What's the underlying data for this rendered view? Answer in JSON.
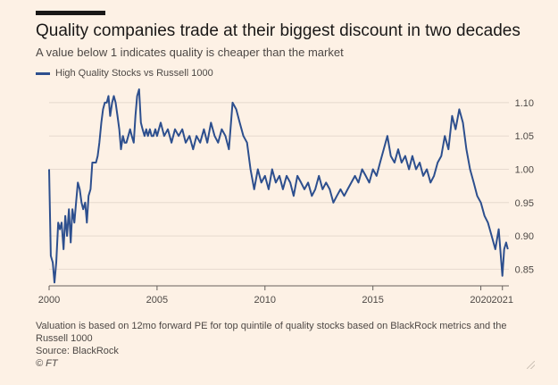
{
  "header": {
    "title": "Quality companies trade at their biggest discount in two decades",
    "subtitle": "A value below 1 indicates quality is cheaper than the market"
  },
  "legend": {
    "label": "High Quality Stocks vs Russell 1000",
    "color": "#2d4f8e"
  },
  "footer": {
    "note": "Valuation is based on 12mo forward PE for top quintile of quality stocks based on BlackRock metrics and the Russell 1000",
    "source": "Source: BlackRock",
    "copyright": "© FT"
  },
  "chart_data": {
    "type": "line",
    "title": "Quality companies trade at their biggest discount in two decades",
    "subtitle": "A value below 1 indicates quality is cheaper than the market",
    "xlabel": "",
    "ylabel": "",
    "xlim": [
      2000,
      2021.3
    ],
    "ylim": [
      0.825,
      1.12
    ],
    "x_ticks": [
      "2000",
      "2005",
      "2010",
      "2015",
      "2020",
      "2021"
    ],
    "x_tick_values": [
      2000,
      2005,
      2010,
      2015,
      2020,
      2021
    ],
    "y_ticks": [
      "0.85",
      "0.90",
      "0.95",
      "1.00",
      "1.05",
      "1.10"
    ],
    "y_tick_values": [
      0.85,
      0.9,
      0.95,
      1.0,
      1.05,
      1.1
    ],
    "grid": "horizontal",
    "legend_position": "top-left",
    "series": [
      {
        "name": "High Quality Stocks vs Russell 1000",
        "color": "#2d4f8e",
        "x": [
          2000.0,
          2000.08,
          2000.17,
          2000.25,
          2000.33,
          2000.42,
          2000.5,
          2000.58,
          2000.67,
          2000.75,
          2000.83,
          2000.92,
          2001.0,
          2001.08,
          2001.17,
          2001.25,
          2001.33,
          2001.42,
          2001.5,
          2001.58,
          2001.67,
          2001.75,
          2001.83,
          2001.92,
          2002.0,
          2002.08,
          2002.17,
          2002.25,
          2002.33,
          2002.42,
          2002.5,
          2002.58,
          2002.67,
          2002.75,
          2002.83,
          2002.92,
          2003.0,
          2003.08,
          2003.17,
          2003.25,
          2003.33,
          2003.42,
          2003.5,
          2003.58,
          2003.67,
          2003.75,
          2003.83,
          2003.92,
          2004.0,
          2004.08,
          2004.17,
          2004.25,
          2004.33,
          2004.42,
          2004.5,
          2004.58,
          2004.67,
          2004.75,
          2004.83,
          2004.92,
          2005.0,
          2005.17,
          2005.33,
          2005.5,
          2005.67,
          2005.83,
          2006.0,
          2006.17,
          2006.33,
          2006.5,
          2006.67,
          2006.83,
          2007.0,
          2007.17,
          2007.33,
          2007.5,
          2007.67,
          2007.83,
          2008.0,
          2008.17,
          2008.33,
          2008.5,
          2008.67,
          2008.83,
          2009.0,
          2009.17,
          2009.33,
          2009.5,
          2009.67,
          2009.83,
          2010.0,
          2010.17,
          2010.33,
          2010.5,
          2010.67,
          2010.83,
          2011.0,
          2011.17,
          2011.33,
          2011.5,
          2011.67,
          2011.83,
          2012.0,
          2012.17,
          2012.33,
          2012.5,
          2012.67,
          2012.83,
          2013.0,
          2013.17,
          2013.33,
          2013.5,
          2013.67,
          2013.83,
          2014.0,
          2014.17,
          2014.33,
          2014.5,
          2014.67,
          2014.83,
          2015.0,
          2015.17,
          2015.33,
          2015.5,
          2015.67,
          2015.83,
          2016.0,
          2016.17,
          2016.33,
          2016.5,
          2016.67,
          2016.83,
          2017.0,
          2017.17,
          2017.33,
          2017.5,
          2017.67,
          2017.83,
          2018.0,
          2018.17,
          2018.33,
          2018.5,
          2018.67,
          2018.83,
          2019.0,
          2019.17,
          2019.33,
          2019.5,
          2019.67,
          2019.83,
          2020.0,
          2020.17,
          2020.33,
          2020.5,
          2020.67,
          2020.83,
          2021.0,
          2021.08,
          2021.17,
          2021.25
        ],
        "values": [
          1.0,
          0.87,
          0.86,
          0.83,
          0.86,
          0.92,
          0.91,
          0.92,
          0.88,
          0.93,
          0.9,
          0.94,
          0.89,
          0.94,
          0.92,
          0.95,
          0.98,
          0.97,
          0.95,
          0.94,
          0.95,
          0.92,
          0.96,
          0.97,
          1.01,
          1.01,
          1.01,
          1.02,
          1.04,
          1.07,
          1.09,
          1.1,
          1.1,
          1.11,
          1.08,
          1.1,
          1.11,
          1.1,
          1.08,
          1.06,
          1.03,
          1.05,
          1.04,
          1.04,
          1.05,
          1.06,
          1.05,
          1.04,
          1.08,
          1.11,
          1.12,
          1.07,
          1.06,
          1.05,
          1.06,
          1.05,
          1.06,
          1.05,
          1.05,
          1.06,
          1.05,
          1.07,
          1.05,
          1.06,
          1.04,
          1.06,
          1.05,
          1.06,
          1.04,
          1.05,
          1.03,
          1.05,
          1.04,
          1.06,
          1.04,
          1.07,
          1.05,
          1.04,
          1.06,
          1.05,
          1.03,
          1.1,
          1.09,
          1.07,
          1.05,
          1.04,
          1.0,
          0.97,
          1.0,
          0.98,
          0.99,
          0.97,
          1.0,
          0.98,
          0.99,
          0.97,
          0.99,
          0.98,
          0.96,
          0.99,
          0.98,
          0.97,
          0.98,
          0.96,
          0.97,
          0.99,
          0.97,
          0.98,
          0.97,
          0.95,
          0.96,
          0.97,
          0.96,
          0.97,
          0.98,
          0.99,
          0.98,
          1.0,
          0.99,
          0.98,
          1.0,
          0.99,
          1.01,
          1.03,
          1.05,
          1.02,
          1.01,
          1.03,
          1.01,
          1.02,
          1.0,
          1.02,
          1.0,
          1.01,
          0.99,
          1.0,
          0.98,
          0.99,
          1.01,
          1.02,
          1.05,
          1.03,
          1.08,
          1.06,
          1.09,
          1.07,
          1.03,
          1.0,
          0.98,
          0.96,
          0.95,
          0.93,
          0.92,
          0.9,
          0.88,
          0.91,
          0.84,
          0.88,
          0.89,
          0.88
        ]
      }
    ]
  }
}
